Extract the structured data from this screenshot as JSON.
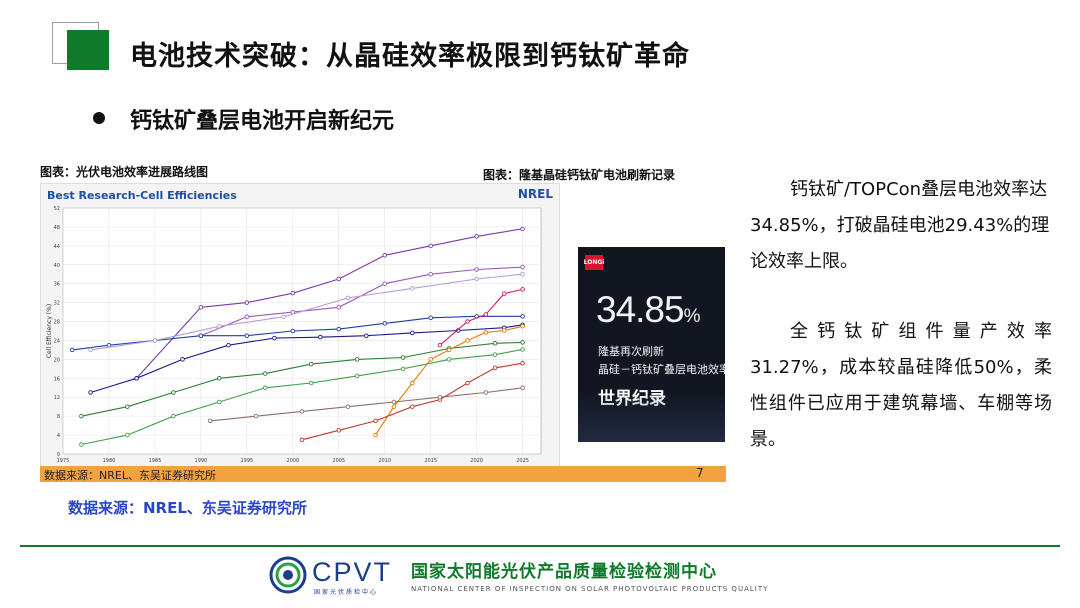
{
  "slide": {
    "title": "电池技术突破：从晶硅效率极限到钙钛矿革命",
    "bullet": "钙钛矿叠层电池开启新纪元",
    "caption_left": "图表：光伏电池效率进展路线图",
    "caption_right": "图表：隆基晶硅钙钛矿电池刷新记录",
    "source_bar": "数据来源：NREL、东吴证券研究所",
    "page_number": "7",
    "source_main": "数据来源：NREL、东吴证券研究所",
    "paragraph1": "钙钛矿/TOPCon叠层电池效率达34.85%，打破晶硅电池29.43%的理论效率上限。",
    "paragraph2": "全钙钛矿组件量产效率31.27%，成本较晶硅降低50%，柔性组件已应用于建筑幕墙、车棚等场景。"
  },
  "record": {
    "badge": "LONGi",
    "value": "34.85",
    "unit": "%",
    "line1": "隆基再次刷新",
    "line2": "晶硅－钙钛矿叠层电池效率",
    "line3": "世界纪录"
  },
  "footer": {
    "cpvt": "CPVT",
    "cpvt_sub": "国家光伏质检中心",
    "org_cn": "国家太阳能光伏产品质量检验检测中心",
    "org_en": "NATIONAL CENTER OF INSPECTION ON SOLAR PHOTOVOLTAIC PRODUCTS QUALITY"
  },
  "colors": {
    "accent_green": "#0e7a2a",
    "source_blue": "#2b46c6",
    "bar_orange": "#f2a240",
    "chart_title_blue": "#1f4ea1"
  },
  "chart_data": {
    "type": "line",
    "title": "Best Research-Cell Efficiencies",
    "brand": "NREL",
    "ylabel": "Cell Efficiency (%)",
    "xlabel": "",
    "xlim": [
      1975,
      2027
    ],
    "ylim": [
      0,
      52
    ],
    "x_ticks": [
      "1975",
      "1980",
      "1985",
      "1990",
      "1995",
      "2000",
      "2005",
      "2010",
      "2015",
      "2020",
      "2025"
    ],
    "y_ticks": [
      "0",
      "4",
      "8",
      "12",
      "16",
      "20",
      "24",
      "28",
      "32",
      "36",
      "40",
      "44",
      "48",
      "52"
    ],
    "series": [
      {
        "color": "#7a3aa8",
        "points": [
          [
            1983,
            16
          ],
          [
            1990,
            31
          ],
          [
            1995,
            32
          ],
          [
            2000,
            34
          ],
          [
            2005,
            37
          ],
          [
            2010,
            42
          ],
          [
            2015,
            44
          ],
          [
            2020,
            46
          ],
          [
            2025,
            47.6
          ]
        ]
      },
      {
        "color": "#9b59b6",
        "points": [
          [
            1990,
            25
          ],
          [
            1995,
            29
          ],
          [
            2000,
            30
          ],
          [
            2005,
            31
          ],
          [
            2010,
            36
          ],
          [
            2015,
            38
          ],
          [
            2020,
            39
          ],
          [
            2025,
            39.5
          ]
        ]
      },
      {
        "color": "#1f3f9f",
        "points": [
          [
            1976,
            22
          ],
          [
            1980,
            23
          ],
          [
            1985,
            24
          ],
          [
            1990,
            25
          ],
          [
            1995,
            25
          ],
          [
            2000,
            26
          ],
          [
            2005,
            26.4
          ],
          [
            2010,
            27.6
          ],
          [
            2015,
            28.8
          ],
          [
            2020,
            29.1
          ],
          [
            2025,
            29.1
          ]
        ]
      },
      {
        "color": "#1a1a8c",
        "points": [
          [
            1978,
            13
          ],
          [
            1983,
            16
          ],
          [
            1988,
            20
          ],
          [
            1993,
            23
          ],
          [
            1998,
            24.5
          ],
          [
            2003,
            24.7
          ],
          [
            2008,
            25
          ],
          [
            2013,
            25.6
          ],
          [
            2018,
            26.1
          ],
          [
            2023,
            26.7
          ],
          [
            2025,
            27.3
          ]
        ]
      },
      {
        "color": "#2e7d32",
        "points": [
          [
            1977,
            8
          ],
          [
            1982,
            10
          ],
          [
            1987,
            13
          ],
          [
            1992,
            16
          ],
          [
            1997,
            17
          ],
          [
            2002,
            19
          ],
          [
            2007,
            20
          ],
          [
            2012,
            20.4
          ],
          [
            2017,
            22.3
          ],
          [
            2022,
            23.4
          ],
          [
            2025,
            23.6
          ]
        ]
      },
      {
        "color": "#43a047",
        "points": [
          [
            1977,
            2
          ],
          [
            1982,
            4
          ],
          [
            1987,
            8
          ],
          [
            1992,
            11
          ],
          [
            1997,
            14
          ],
          [
            2002,
            15
          ],
          [
            2007,
            16.5
          ],
          [
            2012,
            18
          ],
          [
            2017,
            20
          ],
          [
            2022,
            21
          ],
          [
            2025,
            22.1
          ]
        ]
      },
      {
        "color": "#e07b00",
        "points": [
          [
            2009,
            4
          ],
          [
            2011,
            10
          ],
          [
            2013,
            15
          ],
          [
            2015,
            20
          ],
          [
            2017,
            22
          ],
          [
            2019,
            24
          ],
          [
            2021,
            25.7
          ],
          [
            2023,
            26.1
          ],
          [
            2025,
            27
          ]
        ]
      },
      {
        "color": "#c0392b",
        "points": [
          [
            2001,
            3
          ],
          [
            2005,
            5
          ],
          [
            2009,
            7
          ],
          [
            2013,
            10
          ],
          [
            2016,
            11.5
          ],
          [
            2019,
            15
          ],
          [
            2022,
            18.2
          ],
          [
            2025,
            19.2
          ]
        ]
      },
      {
        "color": "#8d6e63",
        "points": [
          [
            1991,
            7
          ],
          [
            1996,
            8
          ],
          [
            2001,
            9
          ],
          [
            2006,
            10
          ],
          [
            2011,
            11
          ],
          [
            2016,
            12
          ],
          [
            2021,
            13
          ],
          [
            2025,
            14
          ]
        ]
      },
      {
        "color": "#b39ddb",
        "points": [
          [
            1978,
            22
          ],
          [
            1985,
            24
          ],
          [
            1992,
            27
          ],
          [
            1999,
            29
          ],
          [
            2006,
            33
          ],
          [
            2013,
            35
          ],
          [
            2020,
            37
          ],
          [
            2025,
            38
          ]
        ]
      },
      {
        "color": "#d81b60",
        "points": [
          [
            2016,
            23
          ],
          [
            2019,
            28
          ],
          [
            2021,
            29.5
          ],
          [
            2023,
            33.9
          ],
          [
            2025,
            34.8
          ]
        ]
      }
    ]
  }
}
